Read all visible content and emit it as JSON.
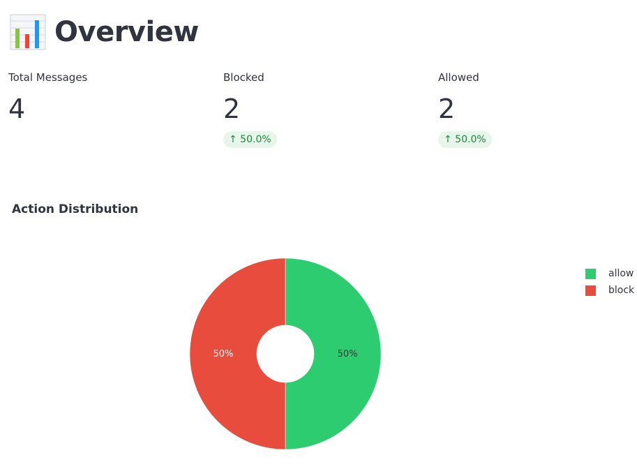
{
  "header": {
    "title": "Overview",
    "icon": "bar-chart-icon"
  },
  "metrics": [
    {
      "label": "Total Messages",
      "value": "4"
    },
    {
      "label": "Blocked",
      "value": "2",
      "delta": "↑ 50.0%"
    },
    {
      "label": "Allowed",
      "value": "2",
      "delta": "↑ 50.0%"
    }
  ],
  "chart_data": {
    "type": "pie",
    "title": "Action Distribution",
    "categories": [
      "allow",
      "block"
    ],
    "values": [
      2,
      2
    ],
    "labels": [
      "50%",
      "50%"
    ],
    "colors": [
      "#2ecc71",
      "#e74c3c"
    ],
    "hole": 0.3,
    "legend": "top-right"
  }
}
